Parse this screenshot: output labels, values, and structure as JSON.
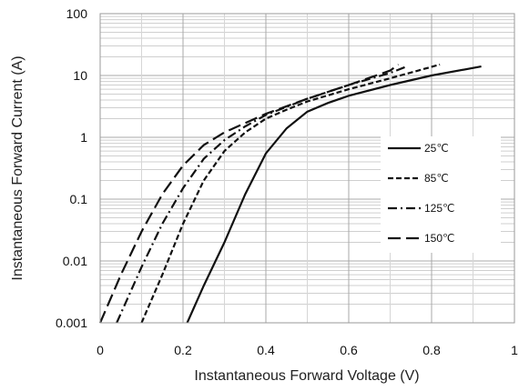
{
  "chart_data": {
    "type": "line",
    "xlabel": "Instantaneous Forward Voltage (V)",
    "ylabel": "Instantaneous Forward Current (A)",
    "xlim": [
      0,
      1
    ],
    "ylim": [
      0.001,
      100
    ],
    "yscale": "log",
    "x_ticks": [
      "0",
      "0.2",
      "0.4",
      "0.6",
      "0.8",
      "1"
    ],
    "y_ticks": [
      "0.001",
      "0.01",
      "0.1",
      "1",
      "10",
      "100"
    ],
    "grid": true,
    "legend_position": "right",
    "series": [
      {
        "name": "25℃",
        "line_style": "solid",
        "x": [
          0.21,
          0.25,
          0.3,
          0.35,
          0.4,
          0.45,
          0.5,
          0.55,
          0.6,
          0.7,
          0.8,
          0.92
        ],
        "y": [
          0.001,
          0.004,
          0.02,
          0.12,
          0.55,
          1.4,
          2.6,
          3.6,
          4.7,
          7.0,
          10.0,
          14.0
        ]
      },
      {
        "name": "85℃",
        "line_style": "dashed",
        "x": [
          0.1,
          0.15,
          0.2,
          0.25,
          0.3,
          0.35,
          0.4,
          0.45,
          0.5,
          0.6,
          0.7,
          0.82
        ],
        "y": [
          0.001,
          0.006,
          0.04,
          0.2,
          0.6,
          1.2,
          2.0,
          2.8,
          3.8,
          6.0,
          9.0,
          15.0
        ]
      },
      {
        "name": "125℃",
        "line_style": "dash-dot",
        "x": [
          0.04,
          0.1,
          0.15,
          0.2,
          0.25,
          0.3,
          0.35,
          0.4,
          0.5,
          0.6,
          0.7,
          0.74
        ],
        "y": [
          0.001,
          0.008,
          0.04,
          0.15,
          0.45,
          0.9,
          1.5,
          2.3,
          4.2,
          7.0,
          11.0,
          14.0
        ]
      },
      {
        "name": "150℃",
        "line_style": "long-dash",
        "x": [
          0.0,
          0.05,
          0.1,
          0.15,
          0.2,
          0.25,
          0.3,
          0.4,
          0.5,
          0.6,
          0.7,
          0.72
        ],
        "y": [
          0.001,
          0.006,
          0.03,
          0.12,
          0.35,
          0.75,
          1.2,
          2.4,
          4.2,
          7.0,
          12.0,
          15.0
        ]
      }
    ]
  }
}
